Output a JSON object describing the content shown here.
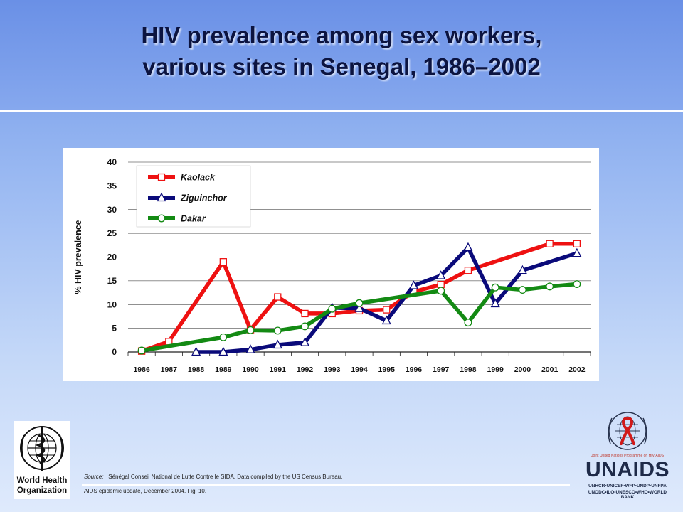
{
  "slide": {
    "title_line1": "HIV prevalence among sex workers,",
    "title_line2": "various sites in Senegal, 1986–2002",
    "source_label": "Source:",
    "source_text": "Sénégal Conseil National de Lutte Contre le SIDA. Data compiled by the US Census Bureau.",
    "citation": "AIDS epidemic update, December 2004.  Fig. 10."
  },
  "logos": {
    "who_line1": "World Health",
    "who_line2": "Organization",
    "unaids_tagline": "Joint United Nations Programme on HIV/AIDS",
    "unaids_name": "UNAIDS",
    "unaids_line1": "UNHCR•UNICEF•WFP•UNDP•UNFPA",
    "unaids_line2": "UNODC•ILO•UNESCO•WHO•WORLD BANK"
  },
  "chart_data": {
    "type": "line",
    "title": "",
    "xlabel": "",
    "ylabel": "% HIV prevalence",
    "ylim": [
      0,
      40
    ],
    "yticks": [
      0,
      5,
      10,
      15,
      20,
      25,
      30,
      35,
      40
    ],
    "x": [
      1986,
      1987,
      1988,
      1989,
      1990,
      1991,
      1992,
      1993,
      1994,
      1995,
      1996,
      1997,
      1998,
      1999,
      2000,
      2001,
      2002
    ],
    "grid": true,
    "legend_position": "top-left",
    "series": [
      {
        "name": "Kaolack",
        "color": "#ee1111",
        "marker": "square",
        "values": [
          0.2,
          2.2,
          null,
          19,
          4.7,
          11.6,
          8.1,
          8.1,
          8.7,
          8.9,
          12.7,
          14.2,
          17.2,
          null,
          null,
          22.8,
          22.8
        ]
      },
      {
        "name": "Ziguinchor",
        "color": "#0a0a7a",
        "marker": "triangle",
        "values": [
          null,
          null,
          0,
          0,
          0.5,
          1.5,
          2,
          9.3,
          9.2,
          6.6,
          14,
          16.1,
          22,
          10.2,
          17.2,
          null,
          20.8
        ]
      },
      {
        "name": "Dakar",
        "color": "#138a13",
        "marker": "circle",
        "values": [
          0.3,
          null,
          null,
          3.1,
          4.6,
          4.5,
          5.4,
          9.1,
          10.3,
          null,
          null,
          12.9,
          6.2,
          13.6,
          13.1,
          13.8,
          14.3
        ]
      }
    ]
  }
}
